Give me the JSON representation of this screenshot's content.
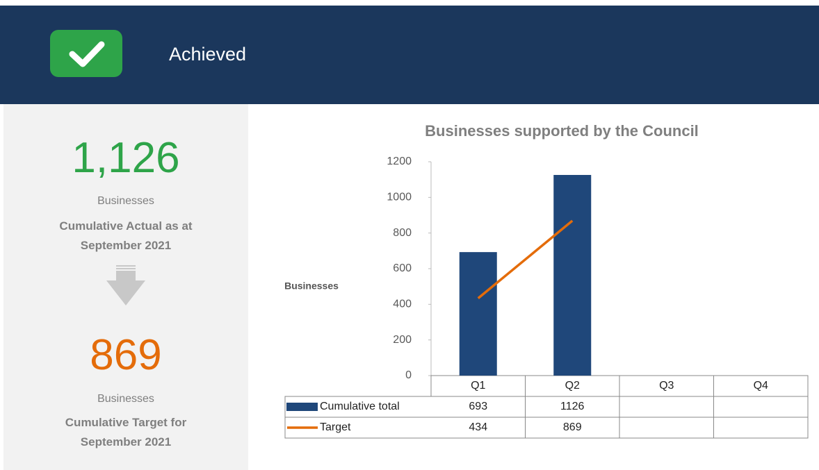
{
  "header": {
    "status": "Achieved"
  },
  "summary": {
    "actual": {
      "value": "1,126",
      "unit": "Businesses",
      "label": "Cumulative Actual as at September 2021"
    },
    "target": {
      "value": "869",
      "unit": "Businesses",
      "label": "Cumulative Target for September 2021"
    }
  },
  "chart_data": {
    "type": "bar",
    "title": "Businesses supported by the Council",
    "y_label": "Businesses",
    "categories": [
      "Q1",
      "Q2",
      "Q3",
      "Q4"
    ],
    "series": [
      {
        "name": "Cumulative total",
        "color": "#1f477a",
        "values": [
          693,
          1126,
          null,
          null
        ]
      },
      {
        "name": "Target",
        "type": "line",
        "color": "#e46c0a",
        "values": [
          434,
          869,
          null,
          null
        ]
      }
    ],
    "ylim": [
      0,
      1200
    ],
    "yticks": [
      0,
      200,
      400,
      600,
      800,
      1000,
      1200
    ],
    "grid": false
  }
}
